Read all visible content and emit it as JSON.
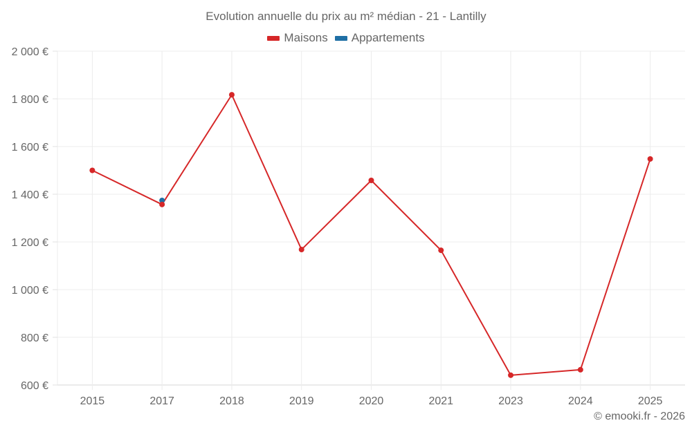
{
  "chart_data": {
    "type": "line",
    "title": "Evolution annuelle du prix au m² médian - 21 - Lantilly",
    "xlabel": "",
    "ylabel": "",
    "categories": [
      "2015",
      "2017",
      "2018",
      "2019",
      "2020",
      "2021",
      "2023",
      "2024",
      "2025"
    ],
    "series": [
      {
        "name": "Maisons",
        "color": "#d62728",
        "values": [
          1500,
          1357,
          1817,
          1168,
          1458,
          1165,
          641,
          664,
          1548
        ]
      },
      {
        "name": "Appartements",
        "color": "#1f6fa5",
        "values": [
          null,
          1374,
          null,
          null,
          null,
          null,
          null,
          null,
          null
        ]
      }
    ],
    "ylim": [
      600,
      2000
    ],
    "yticks": [
      600,
      800,
      1000,
      1200,
      1400,
      1600,
      1800,
      2000
    ],
    "ytick_labels": [
      "600 €",
      "800 €",
      "1 000 €",
      "1 200 €",
      "1 400 €",
      "1 600 €",
      "1 800 €",
      "2 000 €"
    ],
    "grid": true,
    "legend_position": "top"
  },
  "header": {
    "title": "Evolution annuelle du prix au m² médian - 21 - Lantilly"
  },
  "legend": {
    "items": [
      {
        "label": "Maisons",
        "color": "#d62728"
      },
      {
        "label": "Appartements",
        "color": "#1f6fa5"
      }
    ]
  },
  "footer": {
    "credit": "© emooki.fr - 2026"
  }
}
